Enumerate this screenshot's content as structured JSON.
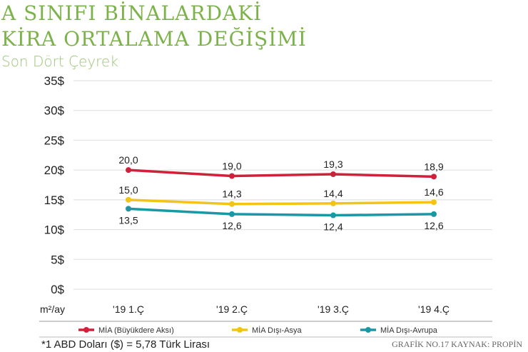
{
  "title_line1": "A SINIFI BİNALARDAKİ",
  "title_line2": "KİRA ORTALAMA DEĞİŞİMİ",
  "subtitle": "Son Dört Çeyrek",
  "footnote": "*1 ABD Doları ($) = 5,78 Türk Lirası",
  "source": "GRAFİK NO.17  KAYNAK: PROPİN",
  "chart_data": {
    "type": "line",
    "title": "A SINIFI BİNALARDAKİ KİRA ORTALAMA DEĞİŞİMİ",
    "ylabel": "m²/ay",
    "ylim": [
      0,
      35
    ],
    "yticks": [
      0,
      5,
      10,
      15,
      20,
      25,
      30,
      35
    ],
    "ytick_labels": [
      "0$",
      "5$",
      "10$",
      "15$",
      "20$",
      "25$",
      "30$",
      "35$"
    ],
    "categories": [
      "'19 1.Ç",
      "'19 2.Ç",
      "'19 3.Ç",
      "'19 4.Ç"
    ],
    "legend_position": "bottom",
    "series": [
      {
        "name": "MİA (Büyükdere Aksı)",
        "color": "#d0213a",
        "values": [
          20.0,
          19.0,
          19.3,
          18.9
        ],
        "labels": [
          "20,0",
          "19,0",
          "19,3",
          "18,9"
        ],
        "label_pos": "above"
      },
      {
        "name": "MİA Dışı-Asya",
        "color": "#f2c416",
        "values": [
          15.0,
          14.3,
          14.4,
          14.6
        ],
        "labels": [
          "15,0",
          "14,3",
          "14,4",
          "14,6"
        ],
        "label_pos": "above"
      },
      {
        "name": "MİA Dışı-Avrupa",
        "color": "#1a98a6",
        "values": [
          13.5,
          12.6,
          12.4,
          12.6
        ],
        "labels": [
          "13,5",
          "12,6",
          "12,4",
          "12,6"
        ],
        "label_pos": "below"
      }
    ]
  }
}
